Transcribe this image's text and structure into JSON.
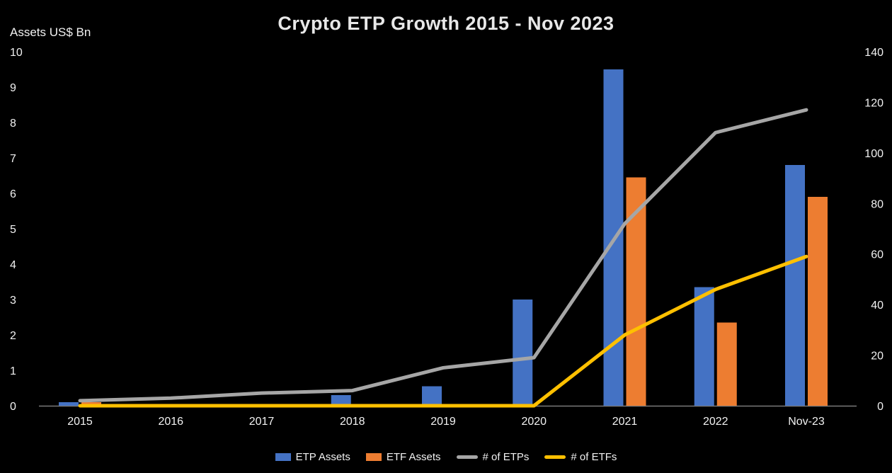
{
  "chart_data": {
    "type": "bar",
    "subtype": "combo-bar-line",
    "title": "Crypto ETP Growth 2015 - Nov 2023",
    "categories": [
      "2015",
      "2016",
      "2017",
      "2018",
      "2019",
      "2020",
      "2021",
      "2022",
      "Nov-23"
    ],
    "series": [
      {
        "name": "ETP Assets",
        "type": "bar",
        "axis": "left",
        "color": "#4472C4",
        "values": [
          0.1,
          0.02,
          0.02,
          0.3,
          0.55,
          3.0,
          9.5,
          3.35,
          6.8
        ]
      },
      {
        "name": "ETF Assets",
        "type": "bar",
        "axis": "left",
        "color": "#ED7D31",
        "values": [
          0.1,
          0,
          0,
          0,
          0,
          0,
          6.45,
          2.35,
          5.9
        ]
      },
      {
        "name": "# of ETPs",
        "type": "line",
        "axis": "right",
        "color": "#A6A6A6",
        "values": [
          2,
          3,
          5,
          6,
          15,
          19,
          72,
          108,
          117
        ]
      },
      {
        "name": "# of ETFs",
        "type": "line",
        "axis": "right",
        "color": "#FFC000",
        "values": [
          0,
          0,
          0,
          0,
          0,
          0,
          28,
          46,
          59
        ]
      }
    ],
    "left_axis": {
      "label": "Assets US$ Bn",
      "min": 0,
      "max": 10,
      "step": 1
    },
    "right_axis": {
      "label": "",
      "min": 0,
      "max": 140,
      "step": 20
    },
    "grid": false,
    "legend_position": "bottom",
    "background": "#000000",
    "text_color": "#f2f2f2",
    "axis_line_color": "#7a7a7a"
  }
}
